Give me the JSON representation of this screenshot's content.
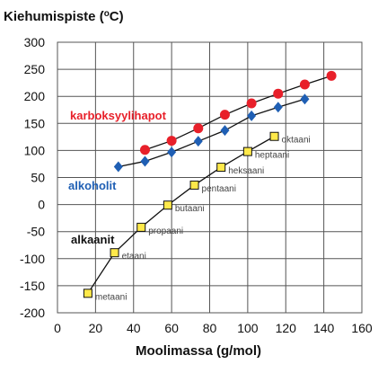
{
  "chart_data": {
    "type": "line",
    "title": "Kiehumispiste (",
    "title_unit_sup": "o",
    "title_unit_rest": "C)",
    "xlabel": "Moolimassa (g/mol)",
    "ylabel": "",
    "xlim": [
      0,
      160
    ],
    "ylim": [
      -200,
      300
    ],
    "xticks": [
      "0",
      "20",
      "40",
      "60",
      "80",
      "100",
      "120",
      "140",
      "160"
    ],
    "yticks": [
      "300",
      "250",
      "200",
      "150",
      "100",
      "50",
      "0",
      "-50",
      "-100",
      "-150",
      "-200"
    ],
    "grid": true,
    "series": [
      {
        "name": "karboksyylihapot",
        "color": "#e8202a",
        "marker": "circle",
        "x": [
          46,
          60,
          74,
          88,
          102,
          116,
          130,
          144
        ],
        "y": [
          101,
          118,
          141,
          166,
          187,
          205,
          222,
          238
        ]
      },
      {
        "name": "alkoholit",
        "color": "#1f5fb4",
        "marker": "diamond",
        "x": [
          32,
          46,
          60,
          74,
          88,
          102,
          116,
          130
        ],
        "y": [
          70,
          80,
          97,
          117,
          137,
          164,
          180,
          195
        ]
      },
      {
        "name": "alkaanit",
        "color": "#111111",
        "marker": "square",
        "marker_fill": "#ffe94a",
        "x": [
          16,
          30,
          44,
          58,
          72,
          86,
          100,
          114
        ],
        "y": [
          -164,
          -89,
          -42,
          -1,
          36,
          69,
          98,
          126
        ],
        "point_labels": [
          "metaani",
          "etaani",
          "propaani",
          "butaani",
          "pentaani",
          "heksaani",
          "heptaani",
          "oktaani"
        ]
      }
    ]
  }
}
